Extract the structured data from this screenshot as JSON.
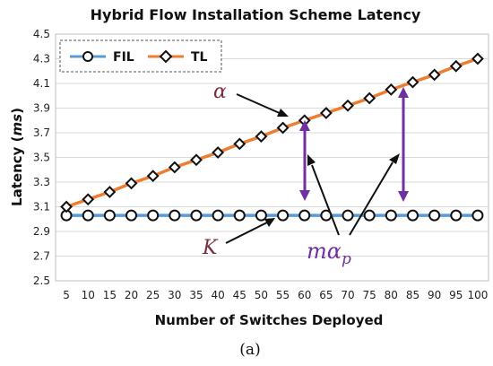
{
  "chart_data": {
    "type": "line",
    "title": "Hybrid Flow Installation Scheme Latency",
    "xlabel": "Number of Switches Deployed",
    "ylabel": "Latency",
    "ylabel_unit": "ms",
    "x": [
      5,
      10,
      15,
      20,
      25,
      30,
      35,
      40,
      45,
      50,
      55,
      60,
      65,
      70,
      75,
      80,
      85,
      90,
      95,
      100
    ],
    "ylim": [
      2.5,
      4.5
    ],
    "yticks": [
      "2.5",
      "2.7",
      "2.9",
      "3.1",
      "3.3",
      "3.5",
      "3.7",
      "3.9",
      "4.1",
      "4.3",
      "4.5"
    ],
    "grid": true,
    "legend_position": "top-left",
    "series": [
      {
        "name": "FIL",
        "color": "#5b9bd5",
        "marker": "circle",
        "values": [
          3.03,
          3.03,
          3.03,
          3.03,
          3.03,
          3.03,
          3.03,
          3.03,
          3.03,
          3.03,
          3.03,
          3.03,
          3.03,
          3.03,
          3.03,
          3.03,
          3.03,
          3.03,
          3.03,
          3.03
        ]
      },
      {
        "name": "TL",
        "color": "#ed7d31",
        "marker": "diamond",
        "values": [
          3.1,
          3.16,
          3.22,
          3.29,
          3.35,
          3.42,
          3.48,
          3.54,
          3.61,
          3.67,
          3.74,
          3.8,
          3.86,
          3.92,
          3.98,
          4.05,
          4.11,
          4.17,
          4.24,
          4.3
        ]
      }
    ],
    "annotations": {
      "alpha": "α",
      "kappa": "K",
      "m_alpha_p": "mα",
      "m_alpha_p_sub": "p",
      "arrow_color": "#7030a0"
    },
    "caption": "(a)"
  }
}
